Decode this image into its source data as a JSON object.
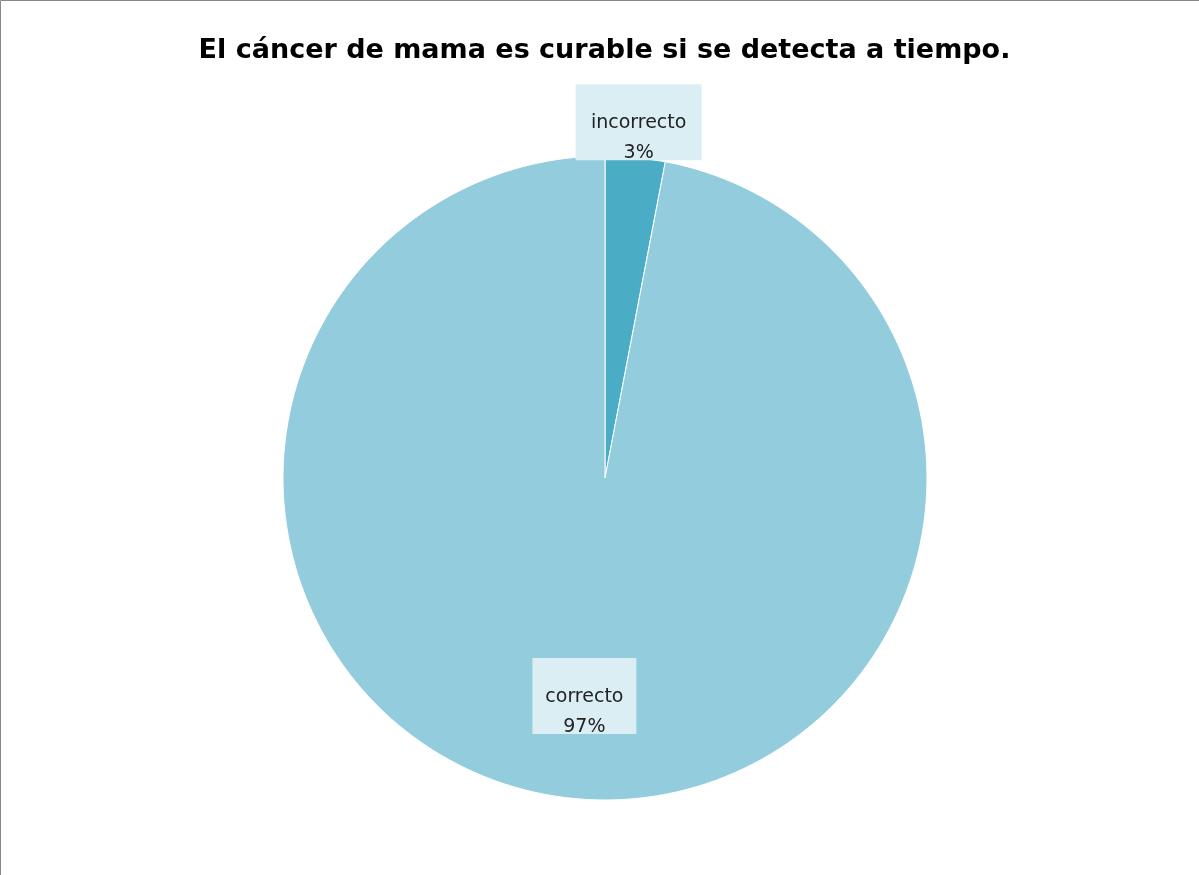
{
  "chart_data": {
    "type": "pie",
    "title": "El cáncer de mama es curable si se detecta a tiempo.",
    "categories": [
      "incorrecto",
      "correcto"
    ],
    "values": [
      3,
      97
    ],
    "value_labels": [
      "3%",
      "97%"
    ],
    "colors": [
      "#4bacc6",
      "#93cddd"
    ]
  }
}
